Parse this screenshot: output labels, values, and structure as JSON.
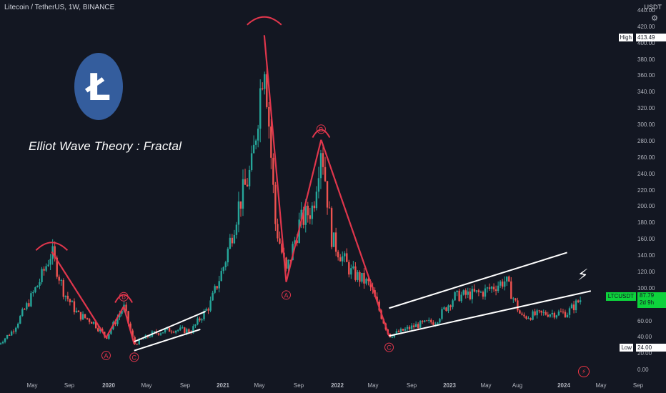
{
  "header": {
    "symbol_line": "Litecoin / TetherUS, 1W, BINANCE",
    "currency": "USDT"
  },
  "annotation": {
    "title": "Elliot Wave Theory : Fractal",
    "labels": [
      "A",
      "B",
      "C",
      "A",
      "B",
      "C"
    ]
  },
  "logo": {
    "letter": "Ł",
    "color": "#345d9d"
  },
  "colors": {
    "up": "#26a69a",
    "down": "#ef5350",
    "wave": "#e0364c",
    "channel": "#ffffff",
    "price": "#0dd33c"
  },
  "price_scale": {
    "high_label": "High",
    "high_value": "413.49",
    "low_label": "Low",
    "low_value": "24.00",
    "symbol_tag": "LTCUSDT",
    "last_price": "87.79",
    "countdown": "2d 9h"
  },
  "icons": {
    "settings": "settings-icon",
    "bolt": "bolt-icon",
    "flash": "flash-icon"
  },
  "chart_data": {
    "type": "candlestick",
    "title": "Litecoin / TetherUS, 1W, BINANCE",
    "ylabel": "USDT",
    "ylim": [
      -6,
      440
    ],
    "y_ticks": [
      "440.00",
      "420.00",
      "400.00",
      "380.00",
      "360.00",
      "340.00",
      "320.00",
      "300.00",
      "280.00",
      "260.00",
      "240.00",
      "220.00",
      "200.00",
      "180.00",
      "160.00",
      "140.00",
      "120.00",
      "100.00",
      "80.00",
      "60.00",
      "40.00",
      "20.00",
      "0.00"
    ],
    "x_ticks": [
      {
        "label": "May",
        "bold": false
      },
      {
        "label": "Sep",
        "bold": false
      },
      {
        "label": "2020",
        "bold": true
      },
      {
        "label": "May",
        "bold": false
      },
      {
        "label": "Sep",
        "bold": false
      },
      {
        "label": "2021",
        "bold": true
      },
      {
        "label": "May",
        "bold": false
      },
      {
        "label": "Sep",
        "bold": false
      },
      {
        "label": "2022",
        "bold": true
      },
      {
        "label": "May",
        "bold": false
      },
      {
        "label": "Sep",
        "bold": false
      },
      {
        "label": "2023",
        "bold": true
      },
      {
        "label": "May",
        "bold": false
      },
      {
        "label": "Aug",
        "bold": false
      },
      {
        "label": "2024",
        "bold": true
      },
      {
        "label": "May",
        "bold": false
      },
      {
        "label": "Sep",
        "bold": false
      }
    ],
    "price_path": [
      {
        "date": "2019-01-01",
        "price": 32
      },
      {
        "date": "2019-02-15",
        "price": 48
      },
      {
        "date": "2019-04-01",
        "price": 78
      },
      {
        "date": "2019-05-15",
        "price": 110
      },
      {
        "date": "2019-06-22",
        "price": 145
      },
      {
        "date": "2019-08-01",
        "price": 95
      },
      {
        "date": "2019-09-15",
        "price": 68
      },
      {
        "date": "2019-11-01",
        "price": 60
      },
      {
        "date": "2019-12-15",
        "price": 40
      },
      {
        "date": "2020-02-10",
        "price": 78
      },
      {
        "date": "2020-03-15",
        "price": 32
      },
      {
        "date": "2020-05-15",
        "price": 45
      },
      {
        "date": "2020-07-15",
        "price": 50
      },
      {
        "date": "2020-09-15",
        "price": 48
      },
      {
        "date": "2020-11-15",
        "price": 80
      },
      {
        "date": "2021-01-01",
        "price": 130
      },
      {
        "date": "2021-02-15",
        "price": 200
      },
      {
        "date": "2021-04-01",
        "price": 250
      },
      {
        "date": "2021-05-10",
        "price": 390
      },
      {
        "date": "2021-06-15",
        "price": 180
      },
      {
        "date": "2021-07-20",
        "price": 120
      },
      {
        "date": "2021-09-01",
        "price": 180
      },
      {
        "date": "2021-10-15",
        "price": 200
      },
      {
        "date": "2021-11-10",
        "price": 280
      },
      {
        "date": "2021-12-15",
        "price": 160
      },
      {
        "date": "2022-02-15",
        "price": 120
      },
      {
        "date": "2022-04-15",
        "price": 105
      },
      {
        "date": "2022-06-18",
        "price": 42
      },
      {
        "date": "2022-09-15",
        "price": 55
      },
      {
        "date": "2022-11-15",
        "price": 60
      },
      {
        "date": "2023-01-15",
        "price": 90
      },
      {
        "date": "2023-04-15",
        "price": 95
      },
      {
        "date": "2023-07-01",
        "price": 110
      },
      {
        "date": "2023-08-20",
        "price": 65
      },
      {
        "date": "2023-11-15",
        "price": 70
      },
      {
        "date": "2024-01-15",
        "price": 70
      },
      {
        "date": "2024-03-01",
        "price": 87.79
      }
    ],
    "wave_lines": [
      [
        {
          "date": "2019-06-22",
          "price": 145
        },
        {
          "date": "2019-12-15",
          "price": 40
        }
      ],
      [
        {
          "date": "2019-12-15",
          "price": 40
        },
        {
          "date": "2020-02-10",
          "price": 78
        }
      ],
      [
        {
          "date": "2020-02-10",
          "price": 78
        },
        {
          "date": "2020-03-15",
          "price": 32
        }
      ],
      [
        {
          "date": "2021-05-10",
          "price": 410
        },
        {
          "date": "2021-07-20",
          "price": 108
        }
      ],
      [
        {
          "date": "2021-07-20",
          "price": 108
        },
        {
          "date": "2021-11-10",
          "price": 282
        }
      ],
      [
        {
          "date": "2021-11-10",
          "price": 282
        },
        {
          "date": "2022-06-18",
          "price": 42
        }
      ]
    ],
    "channel_lines": [
      [
        {
          "date": "2020-03-15",
          "price": 35
        },
        {
          "date": "2020-11-01",
          "price": 72
        }
      ],
      [
        {
          "date": "2020-03-15",
          "price": 24
        },
        {
          "date": "2020-10-15",
          "price": 50
        }
      ],
      [
        {
          "date": "2022-06-18",
          "price": 76
        },
        {
          "date": "2024-01-15",
          "price": 144
        }
      ],
      [
        {
          "date": "2022-06-18",
          "price": 42
        },
        {
          "date": "2024-04-01",
          "price": 97
        }
      ]
    ],
    "peak_arcs": [
      {
        "date": "2019-06-22",
        "price": 152
      },
      {
        "date": "2020-02-10",
        "price": 88
      },
      {
        "date": "2021-05-10",
        "price": 428
      },
      {
        "date": "2021-11-10",
        "price": 290
      }
    ],
    "wave_markers": [
      {
        "label": "A",
        "date": "2019-12-15",
        "price": 18
      },
      {
        "label": "B",
        "date": "2020-02-10",
        "price": 90
      },
      {
        "label": "C",
        "date": "2020-03-15",
        "price": 16
      },
      {
        "label": "A",
        "date": "2021-07-20",
        "price": 92
      },
      {
        "label": "B",
        "date": "2021-11-10",
        "price": 295
      },
      {
        "label": "C",
        "date": "2022-06-18",
        "price": 28
      }
    ]
  }
}
